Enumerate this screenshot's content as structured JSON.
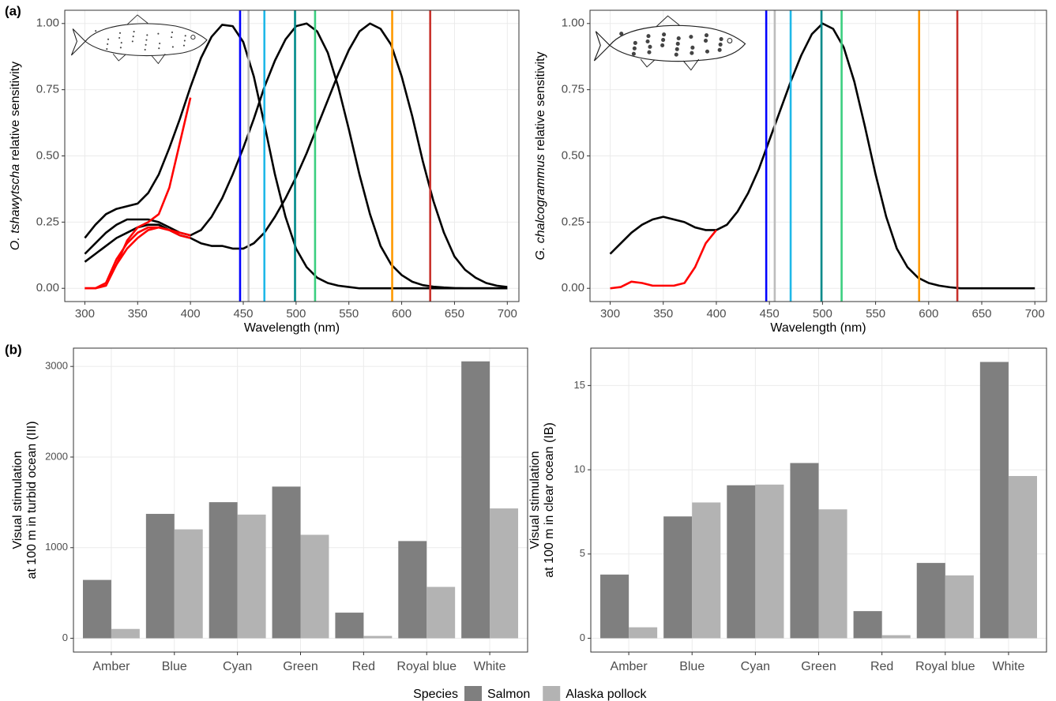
{
  "panel_labels": [
    "(a)",
    "(b)"
  ],
  "legend_title": "Species",
  "chart_data": [
    {
      "type": "line",
      "ylabel": {
        "species": "O. tshawytscha",
        "text": "relative sensitivity"
      },
      "xlabel": "Wavelength (nm)",
      "x": [
        300,
        310,
        320,
        330,
        340,
        350,
        360,
        370,
        380,
        390,
        400,
        410,
        420,
        430,
        440,
        450,
        460,
        470,
        480,
        490,
        500,
        510,
        520,
        530,
        540,
        550,
        560,
        570,
        580,
        590,
        600,
        610,
        620,
        630,
        640,
        650,
        660,
        670,
        680,
        690,
        700
      ],
      "series": [
        {
          "color": "#000000",
          "values": [
            0.19,
            0.24,
            0.28,
            0.3,
            0.31,
            0.32,
            0.36,
            0.43,
            0.53,
            0.64,
            0.76,
            0.87,
            0.95,
            0.995,
            0.99,
            0.93,
            0.8,
            0.62,
            0.43,
            0.27,
            0.15,
            0.08,
            0.04,
            0.02,
            0.01,
            0.005,
            0,
            0,
            0,
            0,
            0,
            0,
            0,
            0,
            0,
            0,
            0,
            0,
            0,
            0,
            0
          ]
        },
        {
          "color": "#000000",
          "values": [
            0.13,
            0.17,
            0.21,
            0.24,
            0.26,
            0.26,
            0.26,
            0.25,
            0.23,
            0.21,
            0.2,
            0.22,
            0.27,
            0.34,
            0.43,
            0.53,
            0.64,
            0.76,
            0.86,
            0.94,
            0.99,
            1.0,
            0.97,
            0.89,
            0.76,
            0.6,
            0.43,
            0.28,
            0.16,
            0.09,
            0.05,
            0.025,
            0.012,
            0.006,
            0.003,
            0.001,
            0,
            0,
            0,
            0,
            0
          ]
        },
        {
          "color": "#000000",
          "values": [
            0.1,
            0.13,
            0.16,
            0.19,
            0.21,
            0.23,
            0.24,
            0.24,
            0.22,
            0.2,
            0.19,
            0.17,
            0.16,
            0.16,
            0.15,
            0.15,
            0.17,
            0.21,
            0.27,
            0.34,
            0.42,
            0.51,
            0.61,
            0.71,
            0.81,
            0.9,
            0.97,
            1.0,
            0.98,
            0.92,
            0.8,
            0.65,
            0.48,
            0.33,
            0.21,
            0.12,
            0.07,
            0.04,
            0.02,
            0.01,
            0.005
          ]
        },
        {
          "color": "#ff0000",
          "values": [
            0,
            0,
            0.02,
            0.09,
            0.18,
            0.23,
            0.25,
            0.28,
            0.38,
            0.55,
            0.72,
            null,
            null,
            null,
            null,
            null,
            null,
            null,
            null,
            null,
            null,
            null,
            null,
            null,
            null,
            null,
            null,
            null,
            null,
            null,
            null,
            null,
            null,
            null,
            null,
            null,
            null,
            null,
            null,
            null,
            null
          ]
        },
        {
          "color": "#ff0000",
          "values": [
            0,
            0,
            0.02,
            0.11,
            0.17,
            0.21,
            0.23,
            0.23,
            0.22,
            0.21,
            0.2,
            null,
            null,
            null,
            null,
            null,
            null,
            null,
            null,
            null,
            null,
            null,
            null,
            null,
            null,
            null,
            null,
            null,
            null,
            null,
            null,
            null,
            null,
            null,
            null,
            null,
            null,
            null,
            null,
            null,
            null
          ]
        },
        {
          "color": "#ff0000",
          "values": [
            0,
            0,
            0.01,
            0.09,
            0.15,
            0.19,
            0.22,
            0.23,
            0.22,
            0.2,
            0.19,
            null,
            null,
            null,
            null,
            null,
            null,
            null,
            null,
            null,
            null,
            null,
            null,
            null,
            null,
            null,
            null,
            null,
            null,
            null,
            null,
            null,
            null,
            null,
            null,
            null,
            null,
            null,
            null,
            null,
            null
          ]
        }
      ],
      "vlines": [
        {
          "x": 447,
          "color": "#0000ff"
        },
        {
          "x": 455,
          "color": "#bdbdbd"
        },
        {
          "x": 470,
          "color": "#1fb8e8"
        },
        {
          "x": 499,
          "color": "#008b8b"
        },
        {
          "x": 518,
          "color": "#3ccf80"
        },
        {
          "x": 591,
          "color": "#ff9900"
        },
        {
          "x": 627,
          "color": "#c8312b"
        }
      ],
      "xlim": [
        281,
        711
      ],
      "xticks": [
        300,
        350,
        400,
        450,
        500,
        550,
        600,
        650,
        700
      ],
      "ylim": [
        -0.05,
        1.05
      ],
      "yticks": [
        {
          "value": 0,
          "label": "0.00"
        },
        {
          "value": 0.25,
          "label": "0.25"
        },
        {
          "value": 0.5,
          "label": "0.50"
        },
        {
          "value": 0.75,
          "label": "0.75"
        },
        {
          "value": 1,
          "label": "1.00"
        }
      ],
      "grid": true
    },
    {
      "type": "line",
      "ylabel": {
        "species": "G. chalcogrammus",
        "text": "relative sensitivity"
      },
      "xlabel": "Wavelength (nm)",
      "x": [
        300,
        310,
        320,
        330,
        340,
        350,
        360,
        370,
        380,
        390,
        400,
        410,
        420,
        430,
        440,
        450,
        460,
        470,
        480,
        490,
        500,
        510,
        520,
        530,
        540,
        550,
        560,
        570,
        580,
        590,
        600,
        610,
        620,
        630,
        640,
        650,
        660,
        670,
        680,
        690,
        700
      ],
      "series": [
        {
          "color": "#000000",
          "values": [
            0.13,
            0.17,
            0.21,
            0.24,
            0.26,
            0.27,
            0.26,
            0.25,
            0.23,
            0.22,
            0.22,
            0.24,
            0.29,
            0.36,
            0.45,
            0.56,
            0.67,
            0.78,
            0.88,
            0.96,
            1.0,
            0.98,
            0.91,
            0.78,
            0.61,
            0.43,
            0.27,
            0.15,
            0.08,
            0.04,
            0.02,
            0.01,
            0.004,
            0,
            0,
            0,
            0,
            0,
            0,
            0,
            0
          ]
        },
        {
          "color": "#ff0000",
          "values": [
            0,
            0.005,
            0.025,
            0.02,
            0.01,
            0.01,
            0.01,
            0.02,
            0.08,
            0.17,
            0.22,
            null,
            null,
            null,
            null,
            null,
            null,
            null,
            null,
            null,
            null,
            null,
            null,
            null,
            null,
            null,
            null,
            null,
            null,
            null,
            null,
            null,
            null,
            null,
            null,
            null,
            null,
            null,
            null,
            null,
            null
          ]
        }
      ],
      "vlines": [
        {
          "x": 447,
          "color": "#0000ff"
        },
        {
          "x": 455,
          "color": "#bdbdbd"
        },
        {
          "x": 470,
          "color": "#1fb8e8"
        },
        {
          "x": 499,
          "color": "#008b8b"
        },
        {
          "x": 518,
          "color": "#3ccf80"
        },
        {
          "x": 591,
          "color": "#ff9900"
        },
        {
          "x": 627,
          "color": "#c8312b"
        }
      ],
      "xlim": [
        281,
        711
      ],
      "xticks": [
        300,
        350,
        400,
        450,
        500,
        550,
        600,
        650,
        700
      ],
      "ylim": [
        -0.05,
        1.05
      ],
      "yticks": [
        {
          "value": 0,
          "label": "0.00"
        },
        {
          "value": 0.25,
          "label": "0.25"
        },
        {
          "value": 0.5,
          "label": "0.50"
        },
        {
          "value": 0.75,
          "label": "0.75"
        },
        {
          "value": 1,
          "label": "1.00"
        }
      ],
      "grid": true
    },
    {
      "type": "bar",
      "ylabel": [
        "Visual stimulation",
        "at 100 m in turbid ocean (III)"
      ],
      "categories": [
        "Amber",
        "Blue",
        "Cyan",
        "Green",
        "Red",
        "Royal blue",
        "White"
      ],
      "series": [
        {
          "name": "Salmon",
          "color": "#7f7f7f",
          "values": [
            644,
            1373,
            1502,
            1674,
            283,
            1073,
            3056
          ]
        },
        {
          "name": "Alaska pollock",
          "color": "#b3b3b3",
          "values": [
            103,
            1202,
            1365,
            1142,
            26,
            567,
            1433
          ]
        }
      ],
      "ylim": [
        -152,
        3202
      ],
      "yticks": [
        0,
        1000,
        2000,
        3000
      ],
      "grid": true
    },
    {
      "type": "bar",
      "ylabel": [
        "Visual stimulation",
        "at 100 m in clear ocean (IB)"
      ],
      "categories": [
        "Amber",
        "Blue",
        "Cyan",
        "Green",
        "Red",
        "Royal blue",
        "White"
      ],
      "series": [
        {
          "name": "Salmon",
          "color": "#7f7f7f",
          "values": [
            3.78,
            7.23,
            9.08,
            10.4,
            1.61,
            4.47,
            16.4
          ]
        },
        {
          "name": "Alaska pollock",
          "color": "#b3b3b3",
          "values": [
            0.65,
            8.06,
            9.12,
            7.65,
            0.18,
            3.73,
            9.63
          ]
        }
      ],
      "ylim": [
        -0.82,
        17.22
      ],
      "yticks": [
        0,
        5,
        10,
        15
      ],
      "grid": true
    }
  ]
}
